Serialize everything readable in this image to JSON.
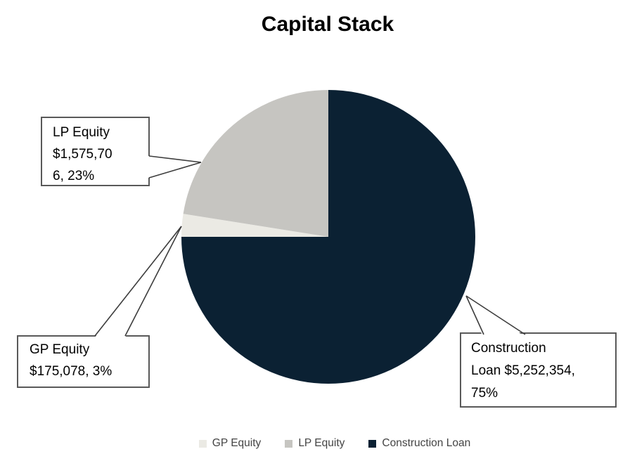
{
  "chart_data": {
    "type": "pie",
    "title": "Capital Stack",
    "slices": [
      {
        "id": "gp-equity",
        "label": "GP Equity",
        "value": 175078,
        "display_value": "$175,078",
        "percent": "3%",
        "color": "#ebeae4"
      },
      {
        "id": "lp-equity",
        "label": "LP Equity",
        "value": 1575706,
        "display_value": "$1,575,706",
        "percent": "23%",
        "color": "#c6c5c1"
      },
      {
        "id": "construction-loan",
        "label": "Construction Loan",
        "value": 5252354,
        "display_value": "$5,252,354",
        "percent": "75%",
        "color": "#0b2133"
      }
    ],
    "draw_order": [
      2,
      0,
      1
    ],
    "start_angle_deg": 0,
    "direction": "clockwise",
    "legend_position": "bottom"
  },
  "callouts": [
    {
      "id": "lp-equity",
      "text": "LP Equity\n$1,575,70\n6, 23%"
    },
    {
      "id": "gp-equity",
      "text": "GP Equity\n$175,078, 3%"
    },
    {
      "id": "construction-loan",
      "text": "Construction\nLoan $5,252,354,\n75%"
    }
  ]
}
